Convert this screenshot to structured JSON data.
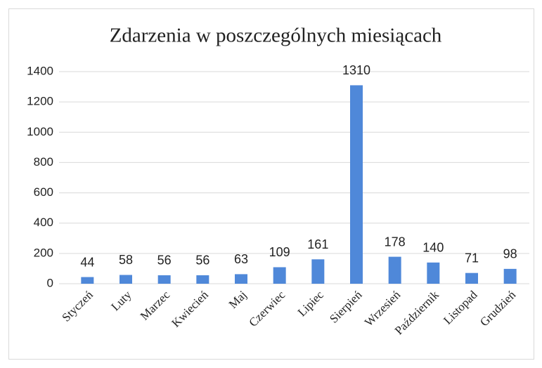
{
  "chart_data": {
    "type": "bar",
    "title": "Zdarzenia w poszczególnych miesiącach",
    "categories": [
      "Styczeń",
      "Luty",
      "Marzec",
      "Kwiecień",
      "Maj",
      "Czerwiec",
      "Lipiec",
      "Sierpień",
      "Wrzesień",
      "Październik",
      "Listopad",
      "Grudzień"
    ],
    "values": [
      44,
      58,
      56,
      56,
      63,
      109,
      161,
      1310,
      178,
      140,
      71,
      98
    ],
    "color": "#4f88d9",
    "ylim": [
      0,
      1400
    ],
    "yticks": [
      0,
      200,
      400,
      600,
      800,
      1000,
      1200,
      1400
    ],
    "grid": true
  }
}
